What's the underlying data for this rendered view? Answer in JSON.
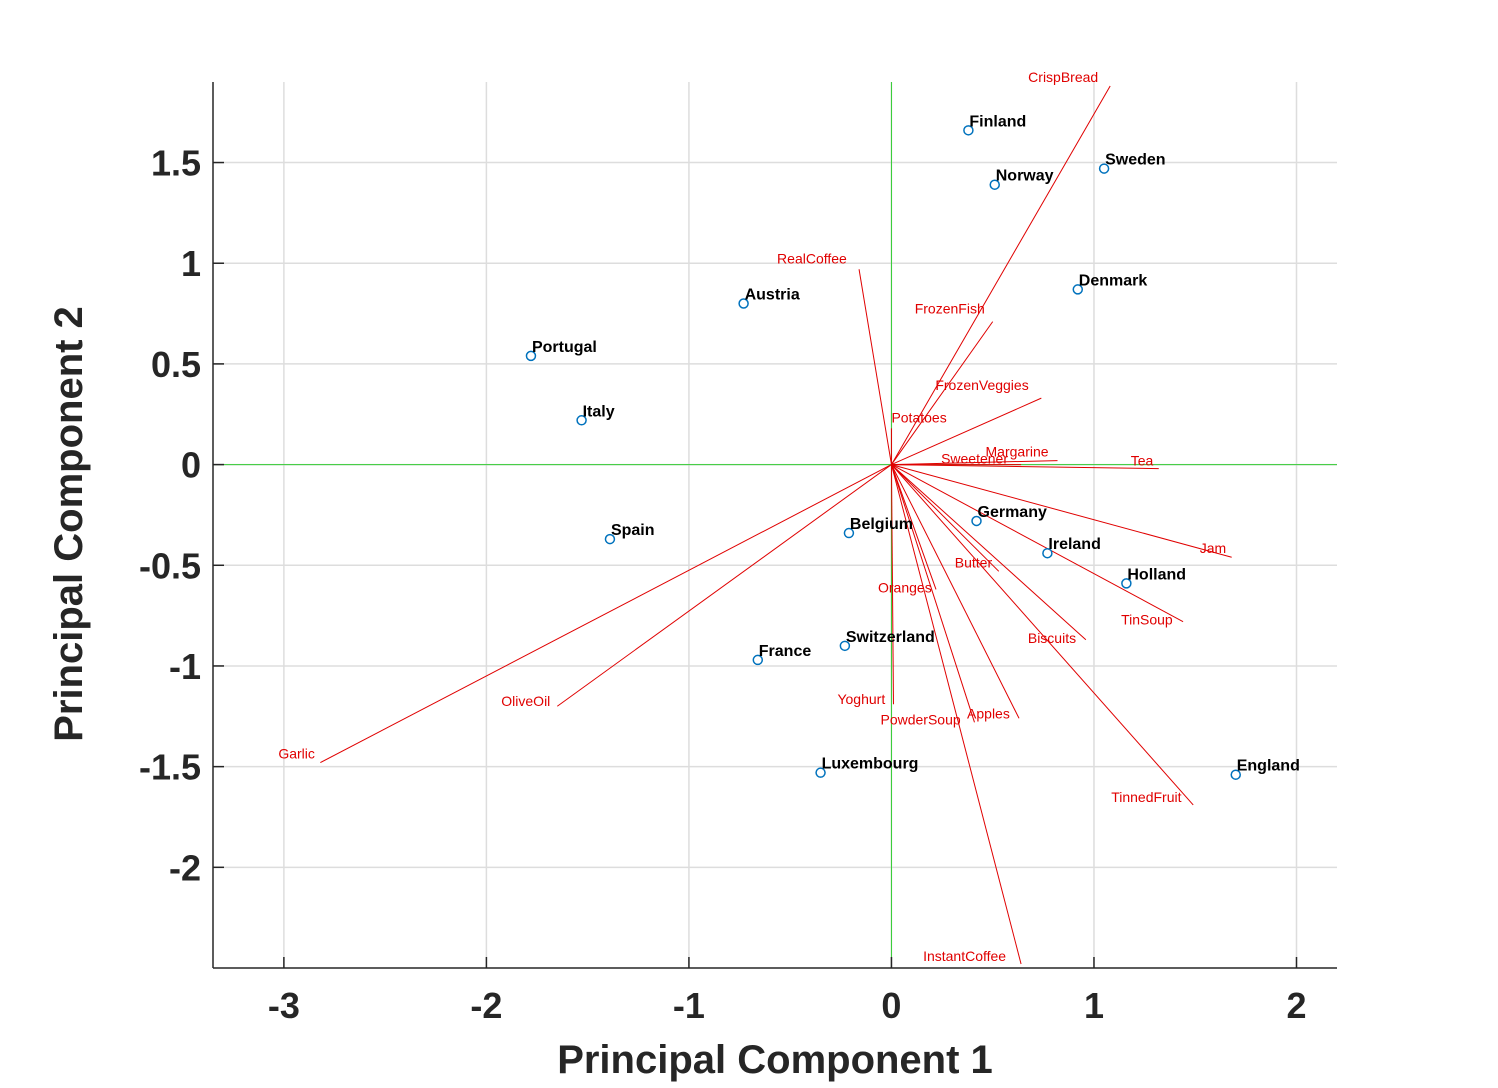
{
  "chart_data": {
    "type": "scatter",
    "subtype": "biplot",
    "xlabel": "Principal Component 1",
    "ylabel": "Principal Component 2",
    "xlim": [
      -3.35,
      2.2
    ],
    "ylim": [
      -2.5,
      1.9
    ],
    "xticks": [
      -3,
      -2,
      -1,
      0,
      1,
      2
    ],
    "yticks": [
      -2,
      -1.5,
      -1,
      -0.5,
      0,
      0.5,
      1,
      1.5
    ],
    "xtick_labels": [
      "-3",
      "-2",
      "-1",
      "0",
      "1",
      "2"
    ],
    "ytick_labels": [
      "-2",
      "-1.5",
      "-1",
      "-0.5",
      "0",
      "0.5",
      "1",
      "1.5"
    ],
    "grid": true,
    "colors": {
      "axis_zero": "#33cc33",
      "vector": "#e00000",
      "marker": "#0072bd",
      "grid": "#dddddd",
      "axis": "#262626"
    },
    "points": [
      {
        "label": "Finland",
        "x": 0.38,
        "y": 1.66
      },
      {
        "label": "Sweden",
        "x": 1.05,
        "y": 1.47
      },
      {
        "label": "Norway",
        "x": 0.51,
        "y": 1.39
      },
      {
        "label": "Denmark",
        "x": 0.92,
        "y": 0.87
      },
      {
        "label": "Austria",
        "x": -0.73,
        "y": 0.8
      },
      {
        "label": "Portugal",
        "x": -1.78,
        "y": 0.54
      },
      {
        "label": "Italy",
        "x": -1.53,
        "y": 0.22
      },
      {
        "label": "Spain",
        "x": -1.39,
        "y": -0.37
      },
      {
        "label": "Germany",
        "x": 0.42,
        "y": -0.28
      },
      {
        "label": "Belgium",
        "x": -0.21,
        "y": -0.34
      },
      {
        "label": "Ireland",
        "x": 0.77,
        "y": -0.44
      },
      {
        "label": "Holland",
        "x": 1.16,
        "y": -0.59
      },
      {
        "label": "Switzerland",
        "x": -0.23,
        "y": -0.9
      },
      {
        "label": "France",
        "x": -0.66,
        "y": -0.97
      },
      {
        "label": "Luxembourg",
        "x": -0.35,
        "y": -1.53
      },
      {
        "label": "England",
        "x": 1.7,
        "y": -1.54
      }
    ],
    "vectors": [
      {
        "label": "CrispBread",
        "x": 1.08,
        "y": 1.88
      },
      {
        "label": "RealCoffee",
        "x": -0.16,
        "y": 0.97
      },
      {
        "label": "FrozenFish",
        "x": 0.5,
        "y": 0.71
      },
      {
        "label": "FrozenVeggies",
        "x": 0.74,
        "y": 0.33
      },
      {
        "label": "Potatoes",
        "x": 0.0,
        "y": 0.18
      },
      {
        "label": "Margarine",
        "x": 0.82,
        "y": 0.02
      },
      {
        "label": "Sweetener",
        "x": 0.64,
        "y": 0.0
      },
      {
        "label": "Tea",
        "x": 1.32,
        "y": -0.02
      },
      {
        "label": "Jam",
        "x": 1.68,
        "y": -0.46
      },
      {
        "label": "Butter",
        "x": 0.53,
        "y": -0.53
      },
      {
        "label": "TinSoup",
        "x": 1.44,
        "y": -0.78
      },
      {
        "label": "Biscuits",
        "x": 0.96,
        "y": -0.87
      },
      {
        "label": "Oranges",
        "x": 0.22,
        "y": -0.62
      },
      {
        "label": "Yoghurt",
        "x": 0.01,
        "y": -1.19
      },
      {
        "label": "PowderSoup",
        "x": 0.41,
        "y": -1.28
      },
      {
        "label": "Apples",
        "x": 0.63,
        "y": -1.26
      },
      {
        "label": "TinnedFruit",
        "x": 1.49,
        "y": -1.69
      },
      {
        "label": "InstantCoffee",
        "x": 0.64,
        "y": -2.48
      },
      {
        "label": "OliveOil",
        "x": -1.65,
        "y": -1.2
      },
      {
        "label": "Garlic",
        "x": -2.82,
        "y": -1.48
      }
    ]
  }
}
